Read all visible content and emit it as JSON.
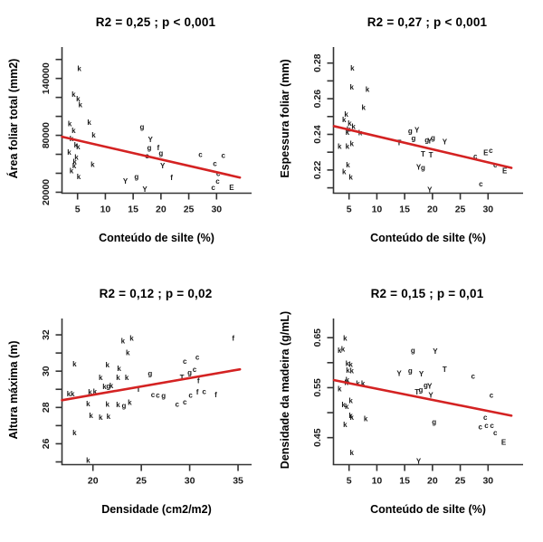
{
  "colors": {
    "regression_line": "#d42222",
    "axis": "#333333",
    "tick_text": "#1a1a1a",
    "point_text": "#1a1a1a",
    "background": "#ffffff"
  },
  "chart_data": [
    {
      "type": "scatter",
      "id": "area-foliar-vs-silte",
      "title": "R2 = 0,25 ; p < 0,001",
      "xlabel": "Conteúdo de silte (%)",
      "ylabel": "Área foliar total (mm2)",
      "xlim": [
        2.2,
        36.3
      ],
      "ylim": [
        19000,
        175000
      ],
      "grid": false,
      "legend": "none",
      "xticks": [
        {
          "v": 5,
          "label": "5"
        },
        {
          "v": 10,
          "label": "10"
        },
        {
          "v": 15,
          "label": "15"
        },
        {
          "v": 20,
          "label": "20"
        },
        {
          "v": 25,
          "label": "25"
        },
        {
          "v": 30,
          "label": "30"
        }
      ],
      "yticks": [
        {
          "v": 20000,
          "label": "20000"
        },
        {
          "v": 40000,
          "label": ""
        },
        {
          "v": 60000,
          "label": ""
        },
        {
          "v": 80000,
          "label": "80000"
        },
        {
          "v": 100000,
          "label": ""
        },
        {
          "v": 120000,
          "label": ""
        },
        {
          "v": 140000,
          "label": "140000"
        },
        {
          "v": 160000,
          "label": ""
        }
      ],
      "regression": {
        "x1": 2.2,
        "y1": 78500,
        "x2": 34.2,
        "y2": 35500
      },
      "points": [
        {
          "x": 5.3,
          "y": 150500,
          "l": "k"
        },
        {
          "x": 4.3,
          "y": 123000,
          "l": "k"
        },
        {
          "x": 5.1,
          "y": 118300,
          "l": "k"
        },
        {
          "x": 5.5,
          "y": 112000,
          "l": "k"
        },
        {
          "x": 3.6,
          "y": 92000,
          "l": "k"
        },
        {
          "x": 7.1,
          "y": 93700,
          "l": "k"
        },
        {
          "x": 4.3,
          "y": 85000,
          "l": "k"
        },
        {
          "x": 7.9,
          "y": 80300,
          "l": "k"
        },
        {
          "x": 3.9,
          "y": 76200,
          "l": "k"
        },
        {
          "x": 4.7,
          "y": 69800,
          "l": "k"
        },
        {
          "x": 5.1,
          "y": 67600,
          "l": "k"
        },
        {
          "x": 3.5,
          "y": 61800,
          "l": "k"
        },
        {
          "x": 4.8,
          "y": 57000,
          "l": "k"
        },
        {
          "x": 4.5,
          "y": 52200,
          "l": "k"
        },
        {
          "x": 4.4,
          "y": 47500,
          "l": "k"
        },
        {
          "x": 7.7,
          "y": 49000,
          "l": "k"
        },
        {
          "x": 3.9,
          "y": 42700,
          "l": "k"
        },
        {
          "x": 5.2,
          "y": 36300,
          "l": "k"
        },
        {
          "x": 16.6,
          "y": 88900,
          "l": "g"
        },
        {
          "x": 17.9,
          "y": 66900,
          "l": "g"
        },
        {
          "x": 20.0,
          "y": 61200,
          "l": "g"
        },
        {
          "x": 15.6,
          "y": 36300,
          "l": "g"
        },
        {
          "x": 18.1,
          "y": 75500,
          "l": "Y"
        },
        {
          "x": 20.3,
          "y": 47800,
          "l": "Y"
        },
        {
          "x": 13.6,
          "y": 31500,
          "l": "Y"
        },
        {
          "x": 17.1,
          "y": 22900,
          "l": "Y"
        },
        {
          "x": 19.5,
          "y": 66900,
          "l": "f"
        },
        {
          "x": 21.9,
          "y": 35300,
          "l": "f"
        },
        {
          "x": 17.5,
          "y": 58300,
          "l": "c"
        },
        {
          "x": 27.1,
          "y": 59500,
          "l": "c"
        },
        {
          "x": 31.2,
          "y": 58600,
          "l": "c"
        },
        {
          "x": 29.7,
          "y": 50000,
          "l": "c"
        },
        {
          "x": 30.3,
          "y": 39400,
          "l": "c"
        },
        {
          "x": 30.2,
          "y": 31500,
          "l": "c"
        },
        {
          "x": 29.4,
          "y": 24800,
          "l": "c"
        },
        {
          "x": 32.7,
          "y": 24800,
          "l": "E"
        }
      ]
    },
    {
      "type": "scatter",
      "id": "espessura-foliar-vs-silte",
      "title": "R2 = 0,27 ; p < 0,001",
      "xlabel": "Conteúdo de silte (%)",
      "ylabel": "Espessura foliar (mm)",
      "xlim": [
        2.2,
        36.3
      ],
      "ylim": [
        0.207,
        0.29
      ],
      "grid": false,
      "legend": "none",
      "xticks": [
        {
          "v": 5,
          "label": "5"
        },
        {
          "v": 10,
          "label": "10"
        },
        {
          "v": 15,
          "label": "15"
        },
        {
          "v": 20,
          "label": "20"
        },
        {
          "v": 25,
          "label": "25"
        },
        {
          "v": 30,
          "label": "30"
        }
      ],
      "yticks": [
        {
          "v": 0.21,
          "label": ""
        },
        {
          "v": 0.22,
          "label": "0.22"
        },
        {
          "v": 0.23,
          "label": ""
        },
        {
          "v": 0.24,
          "label": "0.24"
        },
        {
          "v": 0.25,
          "label": ""
        },
        {
          "v": 0.26,
          "label": "0.26"
        },
        {
          "v": 0.27,
          "label": ""
        },
        {
          "v": 0.28,
          "label": "0.28"
        }
      ],
      "regression": {
        "x1": 2.3,
        "y1": 0.2446,
        "x2": 34.2,
        "y2": 0.2212
      },
      "points": [
        {
          "x": 5.6,
          "y": 0.277,
          "l": "k"
        },
        {
          "x": 5.5,
          "y": 0.2664,
          "l": "k"
        },
        {
          "x": 8.3,
          "y": 0.2651,
          "l": "k"
        },
        {
          "x": 7.6,
          "y": 0.255,
          "l": "k"
        },
        {
          "x": 4.5,
          "y": 0.2512,
          "l": "k"
        },
        {
          "x": 4.1,
          "y": 0.2482,
          "l": "k"
        },
        {
          "x": 5.1,
          "y": 0.2461,
          "l": "k"
        },
        {
          "x": 5.8,
          "y": 0.2444,
          "l": "k"
        },
        {
          "x": 4.9,
          "y": 0.2429,
          "l": "k"
        },
        {
          "x": 4.7,
          "y": 0.241,
          "l": "k"
        },
        {
          "x": 7.0,
          "y": 0.2407,
          "l": "k"
        },
        {
          "x": 3.3,
          "y": 0.2331,
          "l": "k"
        },
        {
          "x": 4.7,
          "y": 0.2331,
          "l": "k"
        },
        {
          "x": 5.5,
          "y": 0.2346,
          "l": "k"
        },
        {
          "x": 4.8,
          "y": 0.2228,
          "l": "k"
        },
        {
          "x": 4.1,
          "y": 0.2191,
          "l": "k"
        },
        {
          "x": 5.3,
          "y": 0.216,
          "l": "k"
        },
        {
          "x": 16.0,
          "y": 0.2419,
          "l": "g"
        },
        {
          "x": 16.6,
          "y": 0.2377,
          "l": "g"
        },
        {
          "x": 19.0,
          "y": 0.2368,
          "l": "g"
        },
        {
          "x": 20.1,
          "y": 0.238,
          "l": "g"
        },
        {
          "x": 18.3,
          "y": 0.2212,
          "l": "g"
        },
        {
          "x": 17.2,
          "y": 0.2424,
          "l": "Y"
        },
        {
          "x": 19.5,
          "y": 0.2363,
          "l": "Y"
        },
        {
          "x": 22.2,
          "y": 0.2357,
          "l": "Y"
        },
        {
          "x": 17.5,
          "y": 0.2216,
          "l": "Y"
        },
        {
          "x": 19.5,
          "y": 0.2089,
          "l": "Y"
        },
        {
          "x": 14.0,
          "y": 0.2351,
          "l": "T"
        },
        {
          "x": 18.3,
          "y": 0.2289,
          "l": "T"
        },
        {
          "x": 19.7,
          "y": 0.2284,
          "l": "T"
        },
        {
          "x": 27.7,
          "y": 0.2275,
          "l": "c"
        },
        {
          "x": 30.5,
          "y": 0.2309,
          "l": "c"
        },
        {
          "x": 31.3,
          "y": 0.2227,
          "l": "c"
        },
        {
          "x": 28.7,
          "y": 0.2122,
          "l": "c"
        },
        {
          "x": 29.6,
          "y": 0.2296,
          "l": "E"
        },
        {
          "x": 33.0,
          "y": 0.2194,
          "l": "E"
        }
      ]
    },
    {
      "type": "scatter",
      "id": "altura-maxima-vs-densidade",
      "title": "R2 = 0,12 ; p = 0,02",
      "xlabel": "Densidade (cm2/m2)",
      "ylabel": "Altura máxima (m)",
      "xlim": [
        16.8,
        36.4
      ],
      "ylim": [
        24.85,
        33.0
      ],
      "grid": false,
      "legend": "none",
      "xticks": [
        {
          "v": 20,
          "label": "20"
        },
        {
          "v": 25,
          "label": "25"
        },
        {
          "v": 30,
          "label": "30"
        },
        {
          "v": 35,
          "label": "35"
        }
      ],
      "yticks": [
        {
          "v": 25,
          "label": ""
        },
        {
          "v": 26,
          "label": "26"
        },
        {
          "v": 27,
          "label": ""
        },
        {
          "v": 28,
          "label": "28"
        },
        {
          "v": 29,
          "label": ""
        },
        {
          "v": 30,
          "label": "30"
        },
        {
          "v": 31,
          "label": ""
        },
        {
          "v": 32,
          "label": "32"
        }
      ],
      "regression": {
        "x1": 16.8,
        "y1": 28.4,
        "x2": 35.2,
        "y2": 30.1
      },
      "points": [
        {
          "x": 23.1,
          "y": 31.67,
          "l": "k"
        },
        {
          "x": 24.0,
          "y": 31.8,
          "l": "k"
        },
        {
          "x": 23.6,
          "y": 31.0,
          "l": "k"
        },
        {
          "x": 18.1,
          "y": 30.4,
          "l": "k"
        },
        {
          "x": 21.5,
          "y": 30.34,
          "l": "k"
        },
        {
          "x": 22.7,
          "y": 30.14,
          "l": "k"
        },
        {
          "x": 20.8,
          "y": 29.64,
          "l": "k"
        },
        {
          "x": 22.6,
          "y": 29.64,
          "l": "k"
        },
        {
          "x": 23.5,
          "y": 29.64,
          "l": "k"
        },
        {
          "x": 21.2,
          "y": 29.14,
          "l": "k"
        },
        {
          "x": 21.9,
          "y": 29.2,
          "l": "k"
        },
        {
          "x": 17.5,
          "y": 28.75,
          "l": "k"
        },
        {
          "x": 17.9,
          "y": 28.75,
          "l": "k"
        },
        {
          "x": 19.7,
          "y": 28.84,
          "l": "k"
        },
        {
          "x": 20.2,
          "y": 28.87,
          "l": "k"
        },
        {
          "x": 19.5,
          "y": 28.2,
          "l": "k"
        },
        {
          "x": 21.5,
          "y": 28.17,
          "l": "k"
        },
        {
          "x": 22.6,
          "y": 28.14,
          "l": "k"
        },
        {
          "x": 23.8,
          "y": 28.27,
          "l": "k"
        },
        {
          "x": 19.8,
          "y": 27.54,
          "l": "k"
        },
        {
          "x": 20.8,
          "y": 27.45,
          "l": "k"
        },
        {
          "x": 21.6,
          "y": 27.5,
          "l": "k"
        },
        {
          "x": 18.1,
          "y": 26.59,
          "l": "k"
        },
        {
          "x": 19.5,
          "y": 25.09,
          "l": "k"
        },
        {
          "x": 25.9,
          "y": 29.87,
          "l": "g"
        },
        {
          "x": 30.0,
          "y": 29.92,
          "l": "g"
        },
        {
          "x": 21.6,
          "y": 29.17,
          "l": "g"
        },
        {
          "x": 23.2,
          "y": 28.1,
          "l": "g"
        },
        {
          "x": 27.3,
          "y": 28.64,
          "l": "g"
        },
        {
          "x": 29.5,
          "y": 30.54,
          "l": "c"
        },
        {
          "x": 30.8,
          "y": 30.75,
          "l": "c"
        },
        {
          "x": 30.5,
          "y": 30.09,
          "l": "c"
        },
        {
          "x": 26.2,
          "y": 28.7,
          "l": "c"
        },
        {
          "x": 26.7,
          "y": 28.67,
          "l": "c"
        },
        {
          "x": 30.1,
          "y": 28.67,
          "l": "c"
        },
        {
          "x": 31.5,
          "y": 28.87,
          "l": "c"
        },
        {
          "x": 28.7,
          "y": 28.17,
          "l": "c"
        },
        {
          "x": 29.5,
          "y": 28.3,
          "l": "c"
        },
        {
          "x": 34.5,
          "y": 31.8,
          "l": "f"
        },
        {
          "x": 30.9,
          "y": 29.47,
          "l": "f"
        },
        {
          "x": 30.8,
          "y": 28.84,
          "l": "f"
        },
        {
          "x": 32.7,
          "y": 28.7,
          "l": "f"
        },
        {
          "x": 29.2,
          "y": 29.64,
          "l": "T"
        },
        {
          "x": 24.7,
          "y": 29.0,
          "l": "T"
        }
      ]
    },
    {
      "type": "scatter",
      "id": "densidade-madeira-vs-silte",
      "title": "R2 = 0,15 ; p = 0,01",
      "xlabel": "Conteúdo de silte (%)",
      "ylabel": "Densidade da madeira (g/mL)",
      "xlim": [
        2.2,
        36.3
      ],
      "ylim": [
        0.396,
        0.692
      ],
      "grid": false,
      "legend": "none",
      "xticks": [
        {
          "v": 5,
          "label": "5"
        },
        {
          "v": 10,
          "label": "10"
        },
        {
          "v": 15,
          "label": "15"
        },
        {
          "v": 20,
          "label": "20"
        },
        {
          "v": 25,
          "label": "25"
        },
        {
          "v": 30,
          "label": "30"
        }
      ],
      "yticks": [
        {
          "v": 0.45,
          "label": "0.45"
        },
        {
          "v": 0.5,
          "label": ""
        },
        {
          "v": 0.55,
          "label": "0.55"
        },
        {
          "v": 0.6,
          "label": ""
        },
        {
          "v": 0.65,
          "label": "0.65"
        }
      ],
      "regression": {
        "x1": 2.3,
        "y1": 0.565,
        "x2": 34.2,
        "y2": 0.494
      },
      "points": [
        {
          "x": 4.3,
          "y": 0.6487,
          "l": "k"
        },
        {
          "x": 3.3,
          "y": 0.6245,
          "l": "k"
        },
        {
          "x": 3.9,
          "y": 0.6269,
          "l": "k"
        },
        {
          "x": 4.7,
          "y": 0.5984,
          "l": "k"
        },
        {
          "x": 5.3,
          "y": 0.5965,
          "l": "k"
        },
        {
          "x": 4.8,
          "y": 0.5845,
          "l": "k"
        },
        {
          "x": 5.5,
          "y": 0.5833,
          "l": "k"
        },
        {
          "x": 4.7,
          "y": 0.5651,
          "l": "k"
        },
        {
          "x": 4.5,
          "y": 0.5602,
          "l": "k"
        },
        {
          "x": 6.6,
          "y": 0.5578,
          "l": "k"
        },
        {
          "x": 7.5,
          "y": 0.5578,
          "l": "k"
        },
        {
          "x": 3.3,
          "y": 0.5469,
          "l": "k"
        },
        {
          "x": 5.3,
          "y": 0.5238,
          "l": "k"
        },
        {
          "x": 4.0,
          "y": 0.5154,
          "l": "k"
        },
        {
          "x": 4.6,
          "y": 0.5118,
          "l": "k"
        },
        {
          "x": 5.3,
          "y": 0.4936,
          "l": "k"
        },
        {
          "x": 5.5,
          "y": 0.4905,
          "l": "k"
        },
        {
          "x": 8.0,
          "y": 0.4874,
          "l": "k"
        },
        {
          "x": 4.3,
          "y": 0.4754,
          "l": "k"
        },
        {
          "x": 5.5,
          "y": 0.4196,
          "l": "k"
        },
        {
          "x": 16.5,
          "y": 0.6245,
          "l": "g"
        },
        {
          "x": 16.0,
          "y": 0.5833,
          "l": "g"
        },
        {
          "x": 18.8,
          "y": 0.5542,
          "l": "g"
        },
        {
          "x": 17.9,
          "y": 0.5456,
          "l": "g"
        },
        {
          "x": 20.3,
          "y": 0.4814,
          "l": "g"
        },
        {
          "x": 20.5,
          "y": 0.6227,
          "l": "Y"
        },
        {
          "x": 14.0,
          "y": 0.5784,
          "l": "Y"
        },
        {
          "x": 18.0,
          "y": 0.5773,
          "l": "Y"
        },
        {
          "x": 19.5,
          "y": 0.5529,
          "l": "Y"
        },
        {
          "x": 19.7,
          "y": 0.5347,
          "l": "Y"
        },
        {
          "x": 17.5,
          "y": 0.4027,
          "l": "Y"
        },
        {
          "x": 22.2,
          "y": 0.5864,
          "l": "T"
        },
        {
          "x": 17.2,
          "y": 0.5409,
          "l": "T"
        },
        {
          "x": 27.3,
          "y": 0.5724,
          "l": "c"
        },
        {
          "x": 30.6,
          "y": 0.5347,
          "l": "c"
        },
        {
          "x": 29.5,
          "y": 0.4905,
          "l": "c"
        },
        {
          "x": 28.6,
          "y": 0.4711,
          "l": "c"
        },
        {
          "x": 29.7,
          "y": 0.4742,
          "l": "c"
        },
        {
          "x": 30.7,
          "y": 0.4742,
          "l": "c"
        },
        {
          "x": 31.3,
          "y": 0.4591,
          "l": "c"
        },
        {
          "x": 32.8,
          "y": 0.4409,
          "l": "E"
        }
      ]
    }
  ]
}
